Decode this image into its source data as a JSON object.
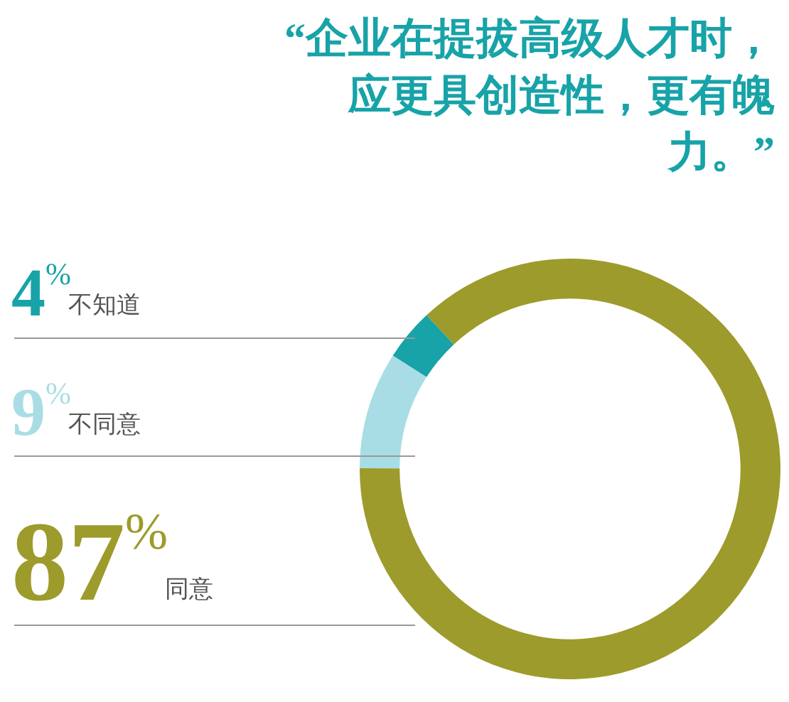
{
  "chart_data": {
    "type": "donut",
    "title": "“企业在提拔高级人才时，应更具创造性，更有魄力。”",
    "categories": [
      "不知道",
      "不同意",
      "同意"
    ],
    "values": [
      4,
      9,
      87
    ],
    "colors": [
      "#17a3a8",
      "#a9dde5",
      "#9d9b2b"
    ],
    "value_labels": [
      "4$^{%}$",
      "9$^{%}$",
      "87$^{%}$"
    ]
  }
}
